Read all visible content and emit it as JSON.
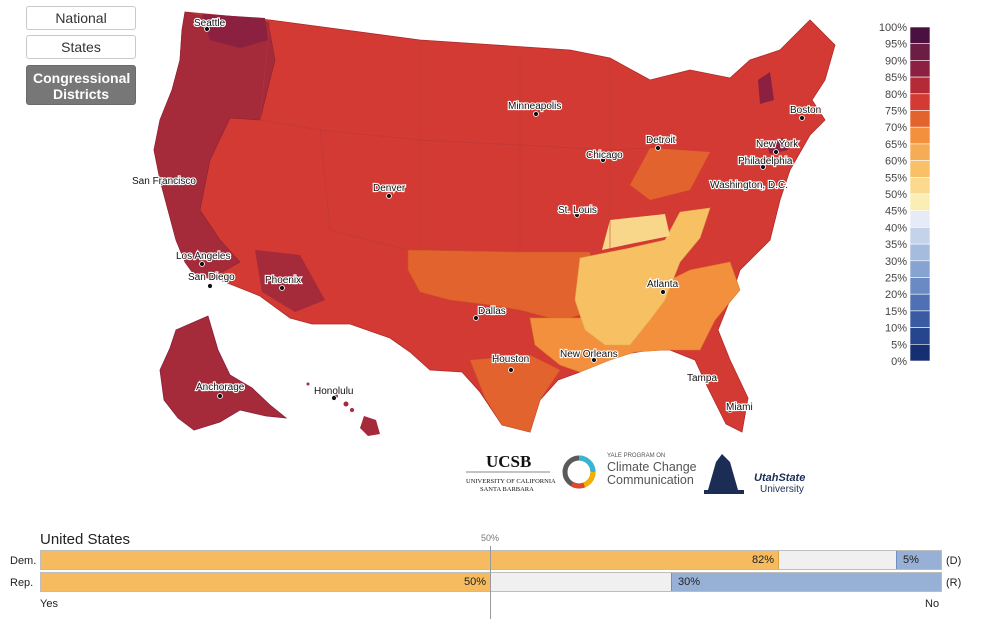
{
  "view_buttons": [
    {
      "label": "National",
      "active": false
    },
    {
      "label": "States",
      "active": false
    },
    {
      "label": "Congressional Districts",
      "active": true
    }
  ],
  "map": {
    "cities": [
      "Seattle",
      "San Francisco",
      "Los Angeles",
      "San Diego",
      "Phoenix",
      "Denver",
      "Minneapolis",
      "Chicago",
      "Detroit",
      "St. Louis",
      "Dallas",
      "Houston",
      "New Orleans",
      "Atlanta",
      "Tampa",
      "Miami",
      "Washington, D.C.",
      "Philadelphia",
      "New York",
      "Boston",
      "Anchorage",
      "Honolulu"
    ],
    "colors": {
      "very_high": "#8b2040",
      "high": "#a52a3a",
      "base": "#d23a33",
      "mid": "#e3632f",
      "orange": "#f3903d",
      "light": "#f6c063",
      "light2": "#f8d68a"
    }
  },
  "legend": {
    "ticks": [
      "100%",
      "95%",
      "90%",
      "85%",
      "80%",
      "75%",
      "70%",
      "65%",
      "60%",
      "55%",
      "50%",
      "45%",
      "40%",
      "35%",
      "30%",
      "25%",
      "20%",
      "15%",
      "10%",
      "5%",
      "0%"
    ],
    "colors": [
      "#4a1040",
      "#6b1d44",
      "#8b2040",
      "#b52a37",
      "#d23a33",
      "#e3632f",
      "#f3903d",
      "#f6ab55",
      "#f8c168",
      "#fbd98e",
      "#fbeeb4",
      "#e6ecf7",
      "#c4d3ea",
      "#a5bcdf",
      "#86a3d2",
      "#6a8ac4",
      "#4f70b4",
      "#3a5aa2",
      "#27448e",
      "#162f73",
      "#0b1c55"
    ]
  },
  "logos": {
    "ucsb_name": "UCSB",
    "ucsb_sub1": "UNIVERSITY OF CALIFORNIA",
    "ucsb_sub2": "SANTA BARBARA",
    "yale_kicker": "YALE PROGRAM ON",
    "yale_line1": "Climate Change",
    "yale_line2": "Communication",
    "usu_line1": "UtahState",
    "usu_line2": "University"
  },
  "chart": {
    "region": "United States",
    "midpoint_label": "50%",
    "yes_label": "Yes",
    "no_label": "No",
    "rows": [
      {
        "label": "Dem.",
        "party_code": "(D)",
        "yes": 82,
        "yes_text": "82%",
        "no": 5,
        "no_text": "5%"
      },
      {
        "label": "Rep.",
        "party_code": "(R)",
        "yes": 50,
        "yes_text": "50%",
        "no": 30,
        "no_text": "30%"
      }
    ]
  }
}
